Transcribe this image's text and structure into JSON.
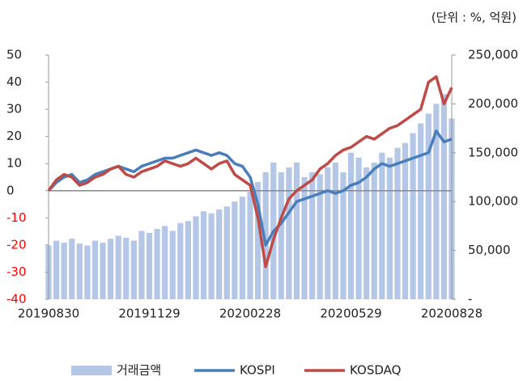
{
  "chart_data": {
    "type": "bar-line",
    "unit_note": "(단위 : %, 억원)",
    "categories": [
      "20190830",
      null,
      null,
      null,
      null,
      null,
      null,
      null,
      null,
      null,
      null,
      null,
      null,
      "20191129",
      null,
      null,
      null,
      null,
      null,
      null,
      null,
      null,
      null,
      null,
      null,
      null,
      "20200228",
      null,
      null,
      null,
      null,
      null,
      null,
      null,
      null,
      null,
      null,
      null,
      null,
      "20200529",
      null,
      null,
      null,
      null,
      null,
      null,
      null,
      null,
      null,
      null,
      null,
      null,
      "20200828"
    ],
    "series": [
      {
        "name": "거래금액",
        "type": "bar",
        "axis": "y2",
        "color": "#b4c7e7",
        "values": [
          55000,
          60000,
          58000,
          62000,
          57000,
          55000,
          60000,
          58000,
          62000,
          65000,
          63000,
          60000,
          70000,
          68000,
          72000,
          75000,
          70000,
          78000,
          80000,
          85000,
          90000,
          88000,
          92000,
          95000,
          100000,
          105000,
          110000,
          120000,
          130000,
          140000,
          130000,
          135000,
          140000,
          125000,
          130000,
          128000,
          135000,
          140000,
          130000,
          150000,
          145000,
          135000,
          140000,
          150000,
          145000,
          155000,
          160000,
          170000,
          180000,
          190000,
          200000,
          210000,
          185000
        ]
      },
      {
        "name": "KOSPI",
        "type": "line",
        "color": "#4a7ebb",
        "values": [
          0,
          3,
          5,
          6,
          3,
          4,
          6,
          7,
          8,
          9,
          8,
          7,
          9,
          10,
          11,
          12,
          12,
          13,
          14,
          15,
          14,
          13,
          14,
          13,
          10,
          9,
          5,
          -5,
          -20,
          -15,
          -12,
          -8,
          -4,
          -3,
          -2,
          -1,
          0,
          -1,
          0,
          2,
          3,
          5,
          8,
          10,
          9,
          10,
          11,
          12,
          13,
          14,
          22,
          18,
          19
        ]
      },
      {
        "name": "KOSDAQ",
        "type": "line",
        "color": "#be4b48",
        "values": [
          0,
          4,
          6,
          5,
          2,
          3,
          5,
          6,
          8,
          9,
          6,
          5,
          7,
          8,
          9,
          11,
          10,
          9,
          10,
          12,
          10,
          8,
          10,
          11,
          6,
          4,
          2,
          -10,
          -28,
          -18,
          -10,
          -3,
          0,
          2,
          4,
          8,
          10,
          13,
          15,
          16,
          18,
          20,
          19,
          21,
          23,
          24,
          26,
          28,
          30,
          40,
          42,
          32,
          38
        ]
      }
    ],
    "ylim": [
      -40,
      50
    ],
    "yticks": [
      -40,
      -30,
      -20,
      -10,
      0,
      10,
      20,
      30,
      40,
      50
    ],
    "negative_tick_color": "#ff0000",
    "y2lim": [
      0,
      250000
    ],
    "y2ticks": [
      {
        "value": 0,
        "label": "-"
      },
      {
        "value": 50000,
        "label": "50,000"
      },
      {
        "value": 100000,
        "label": "100,000"
      },
      {
        "value": 150000,
        "label": "150,000"
      },
      {
        "value": 200000,
        "label": "200,000"
      },
      {
        "value": 250000,
        "label": "250,000"
      }
    ],
    "zero_line_color": "#888888",
    "legend": "bottom"
  }
}
